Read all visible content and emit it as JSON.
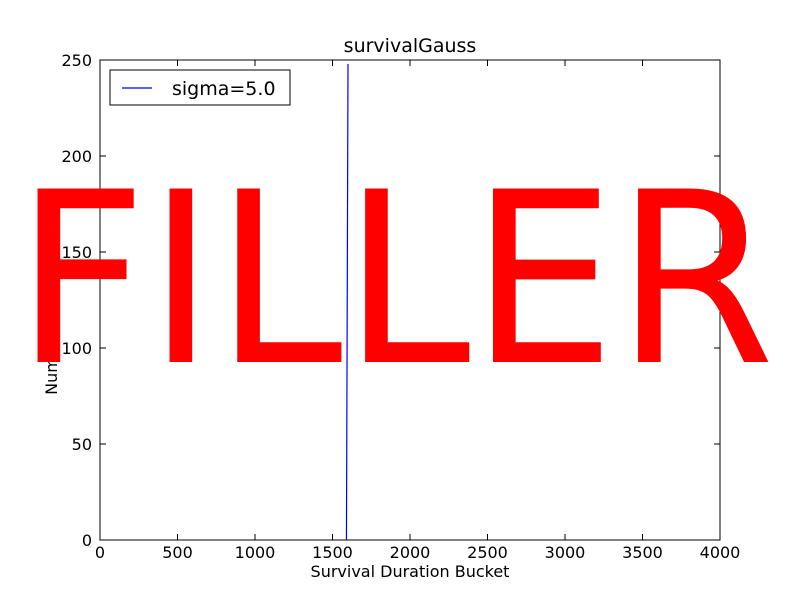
{
  "chart_data": {
    "type": "line",
    "title": "survivalGauss",
    "xlabel": "Survival Duration Bucket",
    "ylabel": "Number of Occurrences",
    "xlim": [
      0,
      4000
    ],
    "ylim": [
      0,
      250
    ],
    "xticks": [
      0,
      500,
      1000,
      1500,
      2000,
      2500,
      3000,
      3500,
      4000
    ],
    "yticks": [
      0,
      50,
      100,
      150,
      200,
      250
    ],
    "grid": false,
    "legend_position": "top-left",
    "series": [
      {
        "name": "sigma=5.0",
        "color": "#0000ff",
        "x": [
          1590,
          1600
        ],
        "y": [
          0,
          248
        ]
      }
    ]
  },
  "overlay": {
    "text": "FILLER",
    "color": "#ff0000"
  }
}
